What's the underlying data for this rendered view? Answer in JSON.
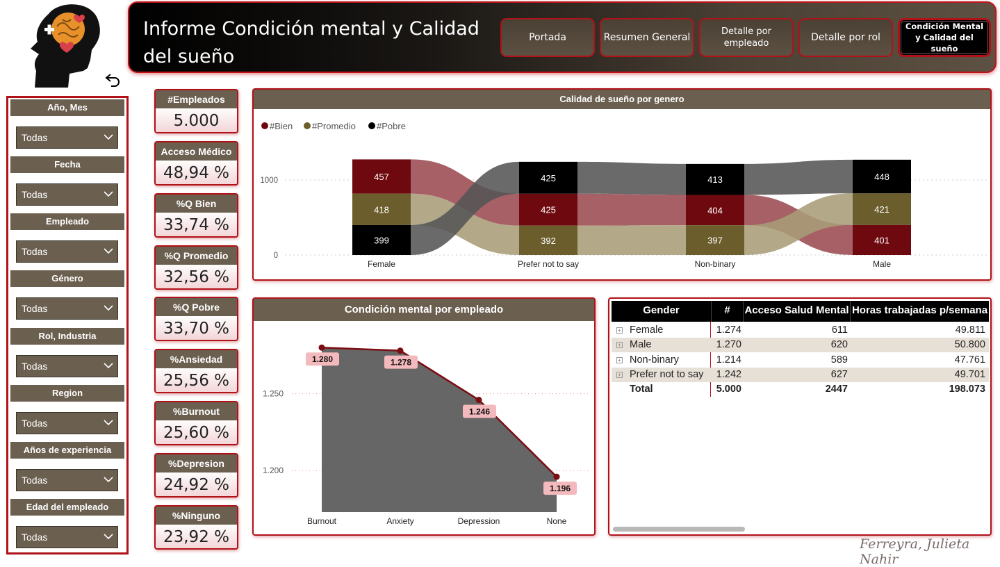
{
  "header": {
    "title": "Informe Condición mental y Calidad del sueño",
    "nav": [
      {
        "label": "Portada"
      },
      {
        "label": "Resumen General"
      },
      {
        "label": "Detalle por empleado"
      },
      {
        "label": "Detalle por rol"
      },
      {
        "label": "Condición Mental y Calidad del sueño"
      }
    ]
  },
  "slicers": [
    {
      "label": "Año, Mes",
      "value": "Todas"
    },
    {
      "label": "Fecha",
      "value": "Todas"
    },
    {
      "label": "Empleado",
      "value": "Todas"
    },
    {
      "label": "Género",
      "value": "Todas"
    },
    {
      "label": "Rol, Industria",
      "value": "Todas"
    },
    {
      "label": "Region",
      "value": "Todas"
    },
    {
      "label": "Años de experiencia",
      "value": "Todas"
    },
    {
      "label": "Edad del empleado",
      "value": "Todas"
    }
  ],
  "kpis": [
    {
      "label": "#Empleados",
      "value": "5.000"
    },
    {
      "label": "Acceso Médico",
      "value": "48,94 %"
    },
    {
      "label": "%Q Bien",
      "value": "33,74 %"
    },
    {
      "label": "%Q Promedio",
      "value": "32,56 %"
    },
    {
      "label": "%Q Pobre",
      "value": "33,70 %"
    },
    {
      "label": "%Ansiedad",
      "value": "25,56 %"
    },
    {
      "label": "%Burnout",
      "value": "25,60 %"
    },
    {
      "label": "%Depresion",
      "value": "24,92 %"
    },
    {
      "label": "%Ninguno",
      "value": "23,92 %"
    }
  ],
  "colors": {
    "bien": "#6e0a0f",
    "promedio": "#6b5e2c",
    "pobre": "#000000",
    "area": "#666666",
    "line": "#7a0c12",
    "label_bg": "#f3b9bd"
  },
  "chart_data": [
    {
      "type": "ribbon",
      "title": "Calidad de sueño por genero",
      "legend": [
        "#Bien",
        "#Promedio",
        "#Pobre"
      ],
      "categories": [
        "Female",
        "Prefer not to say",
        "Non-binary",
        "Male"
      ],
      "y_ticks": [
        "0",
        "1000"
      ],
      "ylim": [
        0,
        1300
      ],
      "series": [
        {
          "name": "#Bien",
          "values": [
            457,
            425,
            404,
            401
          ]
        },
        {
          "name": "#Promedio",
          "values": [
            418,
            392,
            397,
            421
          ]
        },
        {
          "name": "#Pobre",
          "values": [
            399,
            425,
            413,
            448
          ]
        }
      ]
    },
    {
      "type": "area",
      "title": "Condición mental por empleado",
      "categories": [
        "Burnout",
        "Anxiety",
        "Depression",
        "None"
      ],
      "values": [
        1280,
        1278,
        1246,
        1196
      ],
      "labels": [
        "1.280",
        "1.278",
        "1.246",
        "1.196"
      ],
      "y_ticks": [
        "1.200",
        "1.250"
      ],
      "ylim": [
        1173,
        1295
      ]
    }
  ],
  "table": {
    "columns": [
      "Gender",
      "#",
      "Acceso Salud Mental",
      "Horas trabajadas p/semana"
    ],
    "rows": [
      [
        "Female",
        "1.274",
        "611",
        "49.811"
      ],
      [
        "Male",
        "1.270",
        "620",
        "50.800"
      ],
      [
        "Non-binary",
        "1.214",
        "589",
        "47.761"
      ],
      [
        "Prefer not to say",
        "1.242",
        "627",
        "49.701"
      ]
    ],
    "total": [
      "Total",
      "5.000",
      "2447",
      "198.073"
    ]
  },
  "signature": "Ferreyra, Julieta Nahir"
}
